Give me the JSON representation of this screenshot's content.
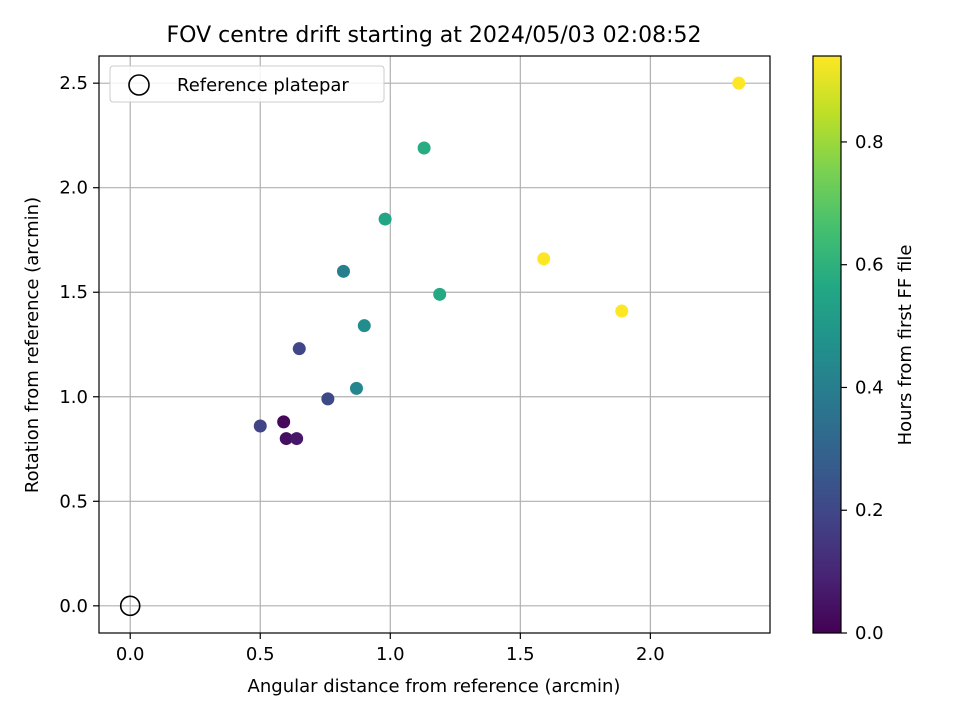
{
  "chart_data": {
    "type": "scatter",
    "title": "FOV centre drift starting at 2024/05/03 02:08:52",
    "xlabel": "Angular distance from reference (arcmin)",
    "ylabel": "Rotation from reference (arcmin)",
    "xlim": [
      -0.12,
      2.46
    ],
    "ylim": [
      -0.13,
      2.63
    ],
    "xticks": [
      0.0,
      0.5,
      1.0,
      1.5,
      2.0
    ],
    "xtick_labels": [
      "0.0",
      "0.5",
      "1.0",
      "1.5",
      "2.0"
    ],
    "yticks": [
      0.0,
      0.5,
      1.0,
      1.5,
      2.0,
      2.5
    ],
    "ytick_labels": [
      "0.0",
      "0.5",
      "1.0",
      "1.5",
      "2.0",
      "2.5"
    ],
    "grid": true,
    "legend": {
      "position": "top-left",
      "entries": [
        "Reference platepar"
      ]
    },
    "reference_point": {
      "x": 0.0,
      "y": 0.0,
      "label": "Reference platepar"
    },
    "colorbar": {
      "label": "Hours from first FF file",
      "range": [
        0.0,
        0.94
      ],
      "ticks": [
        0.0,
        0.2,
        0.4,
        0.6,
        0.8
      ],
      "tick_labels": [
        "0.0",
        "0.2",
        "0.4",
        "0.6",
        "0.8"
      ],
      "colormap": "viridis"
    },
    "points": [
      {
        "x": 0.59,
        "y": 0.88,
        "c": 0.02
      },
      {
        "x": 0.6,
        "y": 0.8,
        "c": 0.04
      },
      {
        "x": 0.64,
        "y": 0.8,
        "c": 0.06
      },
      {
        "x": 0.5,
        "y": 0.86,
        "c": 0.19
      },
      {
        "x": 0.65,
        "y": 1.23,
        "c": 0.2
      },
      {
        "x": 0.76,
        "y": 0.99,
        "c": 0.21
      },
      {
        "x": 0.82,
        "y": 1.6,
        "c": 0.4
      },
      {
        "x": 0.87,
        "y": 1.04,
        "c": 0.43
      },
      {
        "x": 0.9,
        "y": 1.34,
        "c": 0.45
      },
      {
        "x": 0.98,
        "y": 1.85,
        "c": 0.55
      },
      {
        "x": 1.13,
        "y": 2.19,
        "c": 0.58
      },
      {
        "x": 1.19,
        "y": 1.49,
        "c": 0.57
      },
      {
        "x": 1.59,
        "y": 1.66,
        "c": 0.94
      },
      {
        "x": 1.89,
        "y": 1.41,
        "c": 0.94
      },
      {
        "x": 2.34,
        "y": 2.5,
        "c": 0.94
      }
    ]
  }
}
